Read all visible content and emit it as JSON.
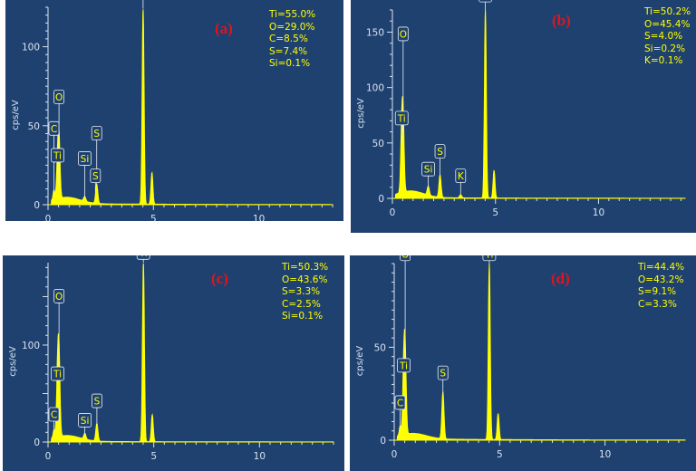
{
  "chart_data": [
    {
      "type": "line",
      "panel_label": "(a)",
      "ylabel": "cps/eV",
      "xlim": [
        0,
        13.5
      ],
      "ylim": [
        0,
        125
      ],
      "x_ticks": [
        "0",
        "5",
        "10"
      ],
      "y_ticks": [
        "0",
        "50",
        "100"
      ],
      "composition": [
        "Ti=55.0%",
        "O=29.0%",
        "C=8.5%",
        "S=7.4%",
        "Si=0.1%"
      ],
      "peak_labels": [
        {
          "label": "Ti",
          "x": 4.51,
          "y": 124,
          "tag_y": 146
        },
        {
          "label": "O",
          "x": 0.52,
          "y": 12,
          "tag_y": 68
        },
        {
          "label": "C",
          "x": 0.28,
          "y": 6,
          "tag_y": 48
        },
        {
          "label": "Ti",
          "x": 0.45,
          "y": 20,
          "tag_y": 31
        },
        {
          "label": "Si",
          "x": 1.74,
          "y": 5,
          "tag_y": 29
        },
        {
          "label": "S",
          "x": 2.31,
          "y": 12,
          "tag_y": 45
        },
        {
          "label": "S",
          "x": 2.25,
          "y": 8,
          "tag_y": 18
        }
      ],
      "spectrum_peaks": [
        {
          "x": 0.52,
          "y": 36,
          "w": 0.05
        },
        {
          "x": 0.45,
          "y": 20,
          "w": 0.05
        },
        {
          "x": 0.28,
          "y": 6,
          "w": 0.04
        },
        {
          "x": 1.74,
          "y": 3,
          "w": 0.05
        },
        {
          "x": 2.31,
          "y": 12,
          "w": 0.05
        },
        {
          "x": 4.51,
          "y": 124,
          "w": 0.045
        },
        {
          "x": 4.93,
          "y": 20,
          "w": 0.045
        }
      ],
      "background_level": 4
    },
    {
      "type": "line",
      "panel_label": "(b)",
      "ylabel": "cps/eV",
      "xlim": [
        0,
        14.2
      ],
      "ylim": [
        0,
        170
      ],
      "x_ticks": [
        "0",
        "5",
        "10"
      ],
      "y_ticks": [
        "0",
        "50",
        "100",
        "150"
      ],
      "composition": [
        "Ti=50.2%",
        "O=45.4%",
        "S=4.0%",
        "Si=0.2%",
        "K=0.1%"
      ],
      "peak_labels": [
        {
          "label": "Ti",
          "x": 4.51,
          "y": 170,
          "tag_y": 183
        },
        {
          "label": "O",
          "x": 0.52,
          "y": 60,
          "tag_y": 148
        },
        {
          "label": "Ti",
          "x": 0.45,
          "y": 50,
          "tag_y": 72
        },
        {
          "label": "Si",
          "x": 1.74,
          "y": 10,
          "tag_y": 26
        },
        {
          "label": "S",
          "x": 2.31,
          "y": 20,
          "tag_y": 42
        },
        {
          "label": "K",
          "x": 3.31,
          "y": 4,
          "tag_y": 20
        }
      ],
      "spectrum_peaks": [
        {
          "x": 0.52,
          "y": 60,
          "w": 0.05
        },
        {
          "x": 0.45,
          "y": 50,
          "w": 0.05
        },
        {
          "x": 1.74,
          "y": 8,
          "w": 0.05
        },
        {
          "x": 2.31,
          "y": 20,
          "w": 0.05
        },
        {
          "x": 3.31,
          "y": 3,
          "w": 0.05
        },
        {
          "x": 4.51,
          "y": 170,
          "w": 0.045
        },
        {
          "x": 4.93,
          "y": 25,
          "w": 0.045
        }
      ],
      "background_level": 6
    },
    {
      "type": "line",
      "panel_label": "(c)",
      "ylabel": "cps/eV",
      "xlim": [
        0,
        13.5
      ],
      "ylim": [
        0,
        185
      ],
      "x_ticks": [
        "0",
        "5",
        "10"
      ],
      "y_ticks": [
        "0",
        "100"
      ],
      "composition": [
        "Ti=50.3%",
        "O=43.6%",
        "S=3.3%",
        "C=2.5%",
        "Si=0.1%"
      ],
      "peak_labels": [
        {
          "label": "Ti",
          "x": 4.51,
          "y": 185,
          "tag_y": 195
        },
        {
          "label": "O",
          "x": 0.52,
          "y": 75,
          "tag_y": 150
        },
        {
          "label": "Ti",
          "x": 0.45,
          "y": 60,
          "tag_y": 70
        },
        {
          "label": "C",
          "x": 0.28,
          "y": 10,
          "tag_y": 28
        },
        {
          "label": "Si",
          "x": 1.74,
          "y": 8,
          "tag_y": 22
        },
        {
          "label": "S",
          "x": 2.31,
          "y": 18,
          "tag_y": 42
        }
      ],
      "spectrum_peaks": [
        {
          "x": 0.52,
          "y": 75,
          "w": 0.05
        },
        {
          "x": 0.45,
          "y": 60,
          "w": 0.05
        },
        {
          "x": 0.28,
          "y": 8,
          "w": 0.04
        },
        {
          "x": 1.74,
          "y": 6,
          "w": 0.05
        },
        {
          "x": 2.31,
          "y": 18,
          "w": 0.05
        },
        {
          "x": 4.51,
          "y": 185,
          "w": 0.045
        },
        {
          "x": 4.93,
          "y": 28,
          "w": 0.045
        }
      ],
      "background_level": 6
    },
    {
      "type": "line",
      "panel_label": "(d)",
      "ylabel": "cps/eV",
      "xlim": [
        0,
        13.8
      ],
      "ylim": [
        0,
        95
      ],
      "x_ticks": [
        "0",
        "5",
        "10"
      ],
      "y_ticks": [
        "0",
        "50"
      ],
      "composition": [
        "Ti=44.4%",
        "O=43.2%",
        "S=9.1%",
        "C=3.3%"
      ],
      "peak_labels": [
        {
          "label": "Ti",
          "x": 4.51,
          "y": 95,
          "tag_y": 100
        },
        {
          "label": "O",
          "x": 0.52,
          "y": 40,
          "tag_y": 100
        },
        {
          "label": "Ti",
          "x": 0.45,
          "y": 32,
          "tag_y": 40
        },
        {
          "label": "C",
          "x": 0.28,
          "y": 6,
          "tag_y": 20
        },
        {
          "label": "S",
          "x": 2.31,
          "y": 25,
          "tag_y": 36
        }
      ],
      "spectrum_peaks": [
        {
          "x": 0.52,
          "y": 40,
          "w": 0.05
        },
        {
          "x": 0.45,
          "y": 32,
          "w": 0.05
        },
        {
          "x": 0.28,
          "y": 5,
          "w": 0.04
        },
        {
          "x": 2.31,
          "y": 25,
          "w": 0.05
        },
        {
          "x": 4.51,
          "y": 95,
          "w": 0.045
        },
        {
          "x": 4.93,
          "y": 14,
          "w": 0.045
        }
      ],
      "background_level": 3
    }
  ],
  "colors": {
    "panel_background": "#1f4170",
    "spectrum": "#ffff00",
    "axis": "#d8e2f0",
    "tag_border": "#e8eef6",
    "panel_label": "#e0151b"
  }
}
